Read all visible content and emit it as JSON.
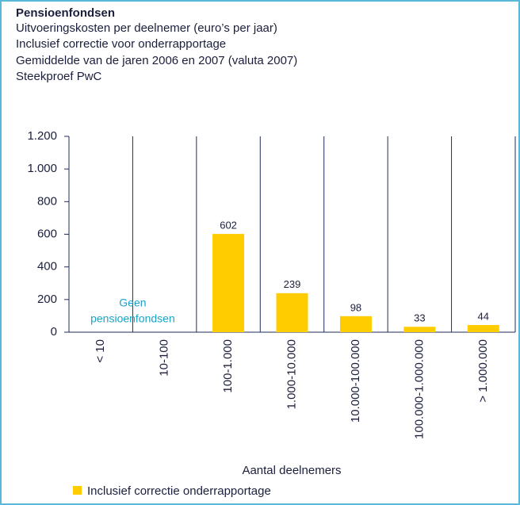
{
  "chart_data": {
    "type": "bar",
    "title": "Pensioenfondsen",
    "subtitle": [
      "Uitvoeringskosten per deelnemer (euro’s per jaar)",
      "Inclusief correctie voor onderrapportage",
      "Gemiddelde van de jaren 2006 en 2007 (valuta 2007)",
      "Steekproef PwC"
    ],
    "categories": [
      "< 10",
      "10-100",
      "100-1.000",
      "1.000-10.000",
      "10.000-100.000",
      "100.000-1.000.000",
      "> 1.000.000"
    ],
    "series": [
      {
        "name": "Inclusief correctie onderrapportage",
        "color": "#ffcc00",
        "values": [
          null,
          null,
          602,
          239,
          98,
          33,
          44
        ]
      }
    ],
    "ylim": [
      0,
      1200
    ],
    "yticks": [
      0,
      200,
      400,
      600,
      800,
      {
        "value": 1000,
        "label": "1.000"
      },
      {
        "value": 1200,
        "label": "1.200"
      }
    ],
    "xlabel": "Aantal deelnemers",
    "annotation": [
      "Geen",
      "pensioenfondsen"
    ],
    "annotation_color": "#1aa3c8",
    "legend": "bottom-left"
  }
}
